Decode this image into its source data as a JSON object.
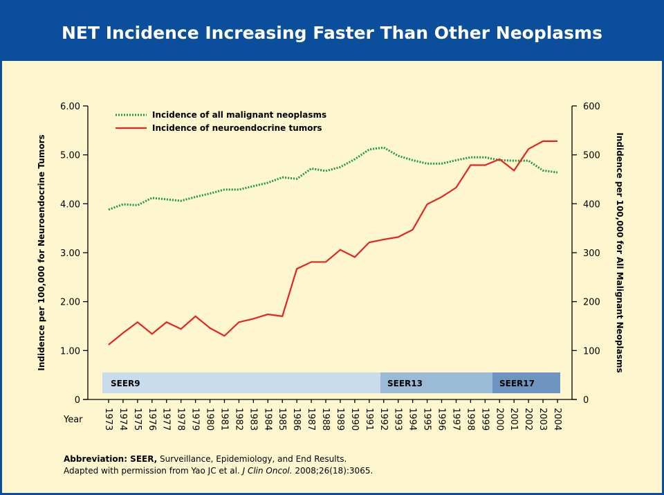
{
  "chart_data": {
    "type": "line",
    "title": "NET Incidence Increasing Faster Than Other Neoplasms",
    "ylabel": "Indidence per 100,000 for Neuroendocrine Tumors",
    "y2label": "Indidence per 100,000 for All Malignant Neoplasms",
    "xlabel": "Year",
    "categories": [
      "1973",
      "1974",
      "1975",
      "1976",
      "1977",
      "1978",
      "1979",
      "1980",
      "1981",
      "1982",
      "1983",
      "1984",
      "1985",
      "1986",
      "1987",
      "1988",
      "1989",
      "1990",
      "1991",
      "1992",
      "1993",
      "1994",
      "1995",
      "1996",
      "1997",
      "1998",
      "1999",
      "2000",
      "2001",
      "2002",
      "2003",
      "2004"
    ],
    "series": [
      {
        "name": "Incidence of all malignant neoplasms",
        "color": "#1a9a3a",
        "dashed": true,
        "axis": "y2",
        "values": [
          388,
          399,
          397,
          412,
          409,
          406,
          414,
          421,
          429,
          429,
          436,
          443,
          454,
          451,
          472,
          467,
          475,
          491,
          511,
          515,
          498,
          489,
          482,
          482,
          489,
          495,
          495,
          489,
          488,
          488,
          468,
          464
        ]
      },
      {
        "name": "Incidence of neuroendocrine tumors",
        "color": "#e52420",
        "dashed": false,
        "values": [
          1.12,
          1.36,
          1.58,
          1.34,
          1.58,
          1.44,
          1.7,
          1.46,
          1.3,
          1.58,
          1.65,
          1.74,
          1.7,
          2.67,
          2.81,
          2.81,
          3.06,
          2.91,
          3.21,
          3.27,
          3.32,
          3.47,
          3.99,
          4.14,
          4.33,
          4.79,
          4.79,
          4.91,
          4.68,
          5.12,
          5.28,
          5.28
        ]
      }
    ],
    "ylim": [
      0,
      6
    ],
    "yticks": [
      0,
      {
        "value": 1,
        "label": "1.00"
      },
      {
        "value": 2,
        "label": "2.00"
      },
      {
        "value": 3,
        "label": "3.00"
      },
      {
        "value": 4,
        "label": "4.00"
      },
      {
        "value": 5,
        "label": "5.00"
      },
      {
        "value": 6,
        "label": "6.00"
      }
    ],
    "y2lim": [
      0,
      600
    ],
    "y2ticks": [
      0,
      100,
      200,
      300,
      400,
      500,
      600
    ],
    "seer_bands": [
      "SEER9",
      "SEER13",
      "SEER17"
    ],
    "legend": "upper left"
  },
  "footnote": {
    "line1_bold": "Abbreviation: SEER,",
    "line1_rest": " Surveillance, Epidemiology, and End Results.",
    "line2_pre": "Adapted with permission from Yao JC et al. ",
    "line2_italic": "J Clin Oncol.",
    "line2_post": " 2008;26(18):3065."
  }
}
